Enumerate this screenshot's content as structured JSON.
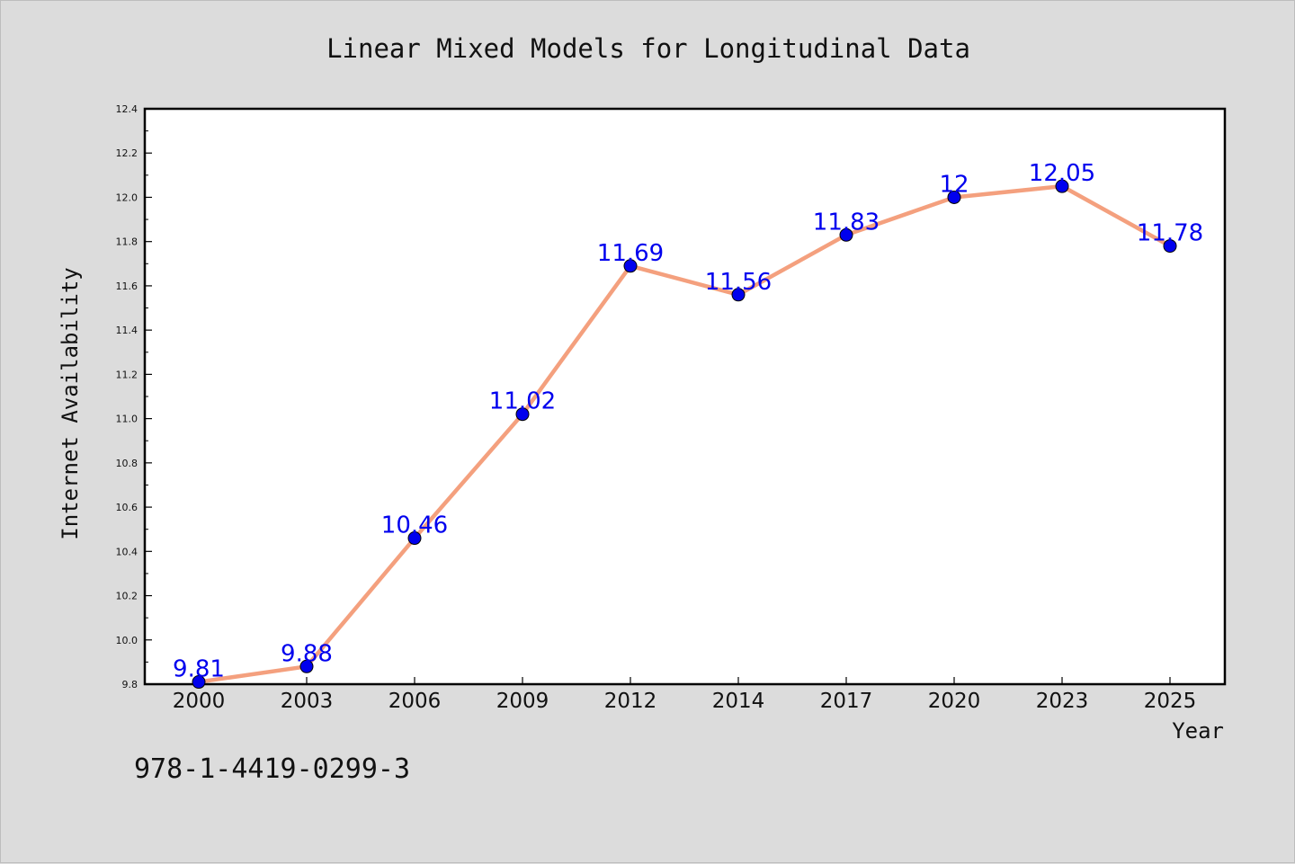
{
  "chart_data": {
    "type": "line",
    "title": "Linear Mixed Models for Longitudinal Data",
    "xlabel": "Year",
    "ylabel": "Internet Availability",
    "categories": [
      "2000",
      "2003",
      "2006",
      "2009",
      "2012",
      "2014",
      "2017",
      "2020",
      "2023",
      "2025"
    ],
    "series": [
      {
        "values": [
          9.81,
          9.88,
          10.46,
          11.02,
          11.69,
          11.56,
          11.83,
          12,
          12.05,
          11.78
        ],
        "data_labels": [
          "9.81",
          "9.88",
          "10.46",
          "11.02",
          "11.69",
          "11.56",
          "11.83",
          "12",
          "12.05",
          "11.78"
        ],
        "line_color": "#f4a07e",
        "marker_color": "#0000ee"
      }
    ],
    "ylim": [
      9.8,
      12.4
    ],
    "yticks": [
      "9.8",
      "10.0",
      "10.2",
      "10.4",
      "10.6",
      "10.8",
      "11.0",
      "11.2",
      "11.4",
      "11.6",
      "11.8",
      "12.0",
      "12.2",
      "12.4"
    ],
    "grid": false,
    "legend": "none"
  },
  "footer": {
    "isbn": "978-1-4419-0299-3"
  },
  "colors": {
    "background": "#dcdcdc",
    "plot_background": "#ffffff",
    "label_color": "#0000ee"
  }
}
